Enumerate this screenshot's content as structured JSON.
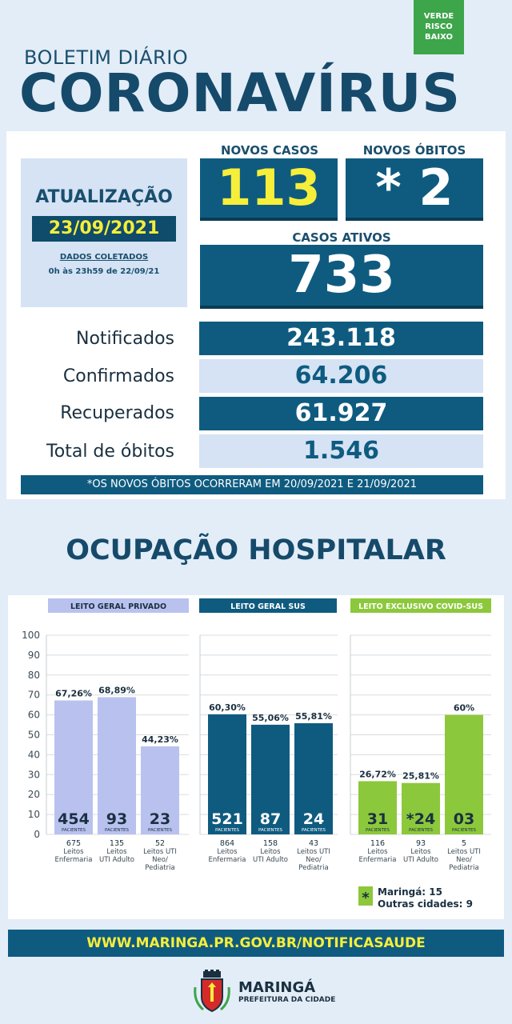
{
  "risk_badge": {
    "line1": "VERDE",
    "line2": "RISCO",
    "line3": "BAIXO"
  },
  "header": {
    "subtitle": "BOLETIM DIÁRIO",
    "title": "CORONAVÍRUS"
  },
  "update": {
    "title": "ATUALIZAÇÃO",
    "date": "23/09/2021",
    "collected_label": "DADOS COLETADOS",
    "collected_range": "0h às 23h59 de 22/09/21"
  },
  "new_cases": {
    "label": "NOVOS CASOS",
    "value": "113"
  },
  "new_deaths": {
    "label": "NOVOS ÓBITOS",
    "value": "* 2"
  },
  "active_cases": {
    "label": "CASOS ATIVOS",
    "value": "733"
  },
  "totals": [
    {
      "label": "Notificados",
      "value": "243.118"
    },
    {
      "label": "Confirmados",
      "value": "64.206"
    },
    {
      "label": "Recuperados",
      "value": "61.927"
    },
    {
      "label": "Total de óbitos",
      "value": "1.546"
    }
  ],
  "note": "*OS NOVOS ÓBITOS OCORRERAM EM 20/09/2021 E 21/09/2021",
  "hospital_title": "OCUPAÇÃO HOSPITALAR",
  "chart_data": {
    "type": "bar",
    "ylim": [
      0,
      100
    ],
    "yticks": [
      "0",
      "10",
      "20",
      "30",
      "40",
      "50",
      "60",
      "70",
      "80",
      "90",
      "100"
    ],
    "patients_label": "PACIENTES",
    "groups": [
      {
        "title": "LEITO GERAL PRIVADO",
        "header_color": "#b9c2ef",
        "header_text": "#1a3040",
        "bar_color": "#b9c2ef",
        "bar_text": "#1a3040",
        "bars": [
          {
            "pct": 67.26,
            "pct_label": "67,26%",
            "patients": "454",
            "beds": "675",
            "cat1": "Leitos",
            "cat2": "Enfermaria",
            "cat3": ""
          },
          {
            "pct": 68.89,
            "pct_label": "68,89%",
            "patients": "93",
            "beds": "135",
            "cat1": "Leitos",
            "cat2": "UTI Adulto",
            "cat3": ""
          },
          {
            "pct": 44.23,
            "pct_label": "44,23%",
            "patients": "23",
            "beds": "52",
            "cat1": "Leitos UTI",
            "cat2": "Neo/",
            "cat3": "Pediatria"
          }
        ]
      },
      {
        "title": "LEITO GERAL SUS",
        "header_color": "#0f5b80",
        "header_text": "#ffffff",
        "bar_color": "#0f5b80",
        "bar_text": "#ffffff",
        "bars": [
          {
            "pct": 60.3,
            "pct_label": "60,30%",
            "patients": "521",
            "beds": "864",
            "cat1": "Leitos",
            "cat2": "Enfermaria",
            "cat3": ""
          },
          {
            "pct": 55.06,
            "pct_label": "55,06%",
            "patients": "87",
            "beds": "158",
            "cat1": "Leitos",
            "cat2": "UTI Adulto",
            "cat3": ""
          },
          {
            "pct": 55.81,
            "pct_label": "55,81%",
            "patients": "24",
            "beds": "43",
            "cat1": "Leitos UTI",
            "cat2": "Neo/",
            "cat3": "Pediatria"
          }
        ]
      },
      {
        "title": "LEITO EXCLUSIVO COVID-SUS",
        "header_color": "#8cc83c",
        "header_text": "#ffffff",
        "bar_color": "#8cc83c",
        "bar_text": "#1a3040",
        "bars": [
          {
            "pct": 26.72,
            "pct_label": "26,72%",
            "patients": "31",
            "beds": "116",
            "cat1": "Leitos",
            "cat2": "Enfermaria",
            "cat3": ""
          },
          {
            "pct": 25.81,
            "pct_label": "25,81%",
            "patients": "*24",
            "beds": "93",
            "cat1": "Leitos",
            "cat2": "UTI Adulto",
            "cat3": ""
          },
          {
            "pct": 60,
            "pct_label": "60%",
            "patients": "03",
            "beds": "5",
            "cat1": "Leitos UTI",
            "cat2": "Neo/",
            "cat3": "Pediatria"
          }
        ]
      }
    ],
    "footnote": {
      "marker": "*",
      "line1": "Maringá: 15",
      "line2": "Outras cidades: 9"
    }
  },
  "website": "WWW.MARINGA.PR.GOV.BR/NOTIFICASAUDE",
  "footer": {
    "city": "MARINGÁ",
    "subtitle": "PREFEITURA DA CIDADE"
  },
  "colors": {
    "dark_blue": "#0f5b80",
    "yellow": "#f6ee39",
    "green": "#3da54a",
    "light_blue": "#d5e3f4"
  }
}
